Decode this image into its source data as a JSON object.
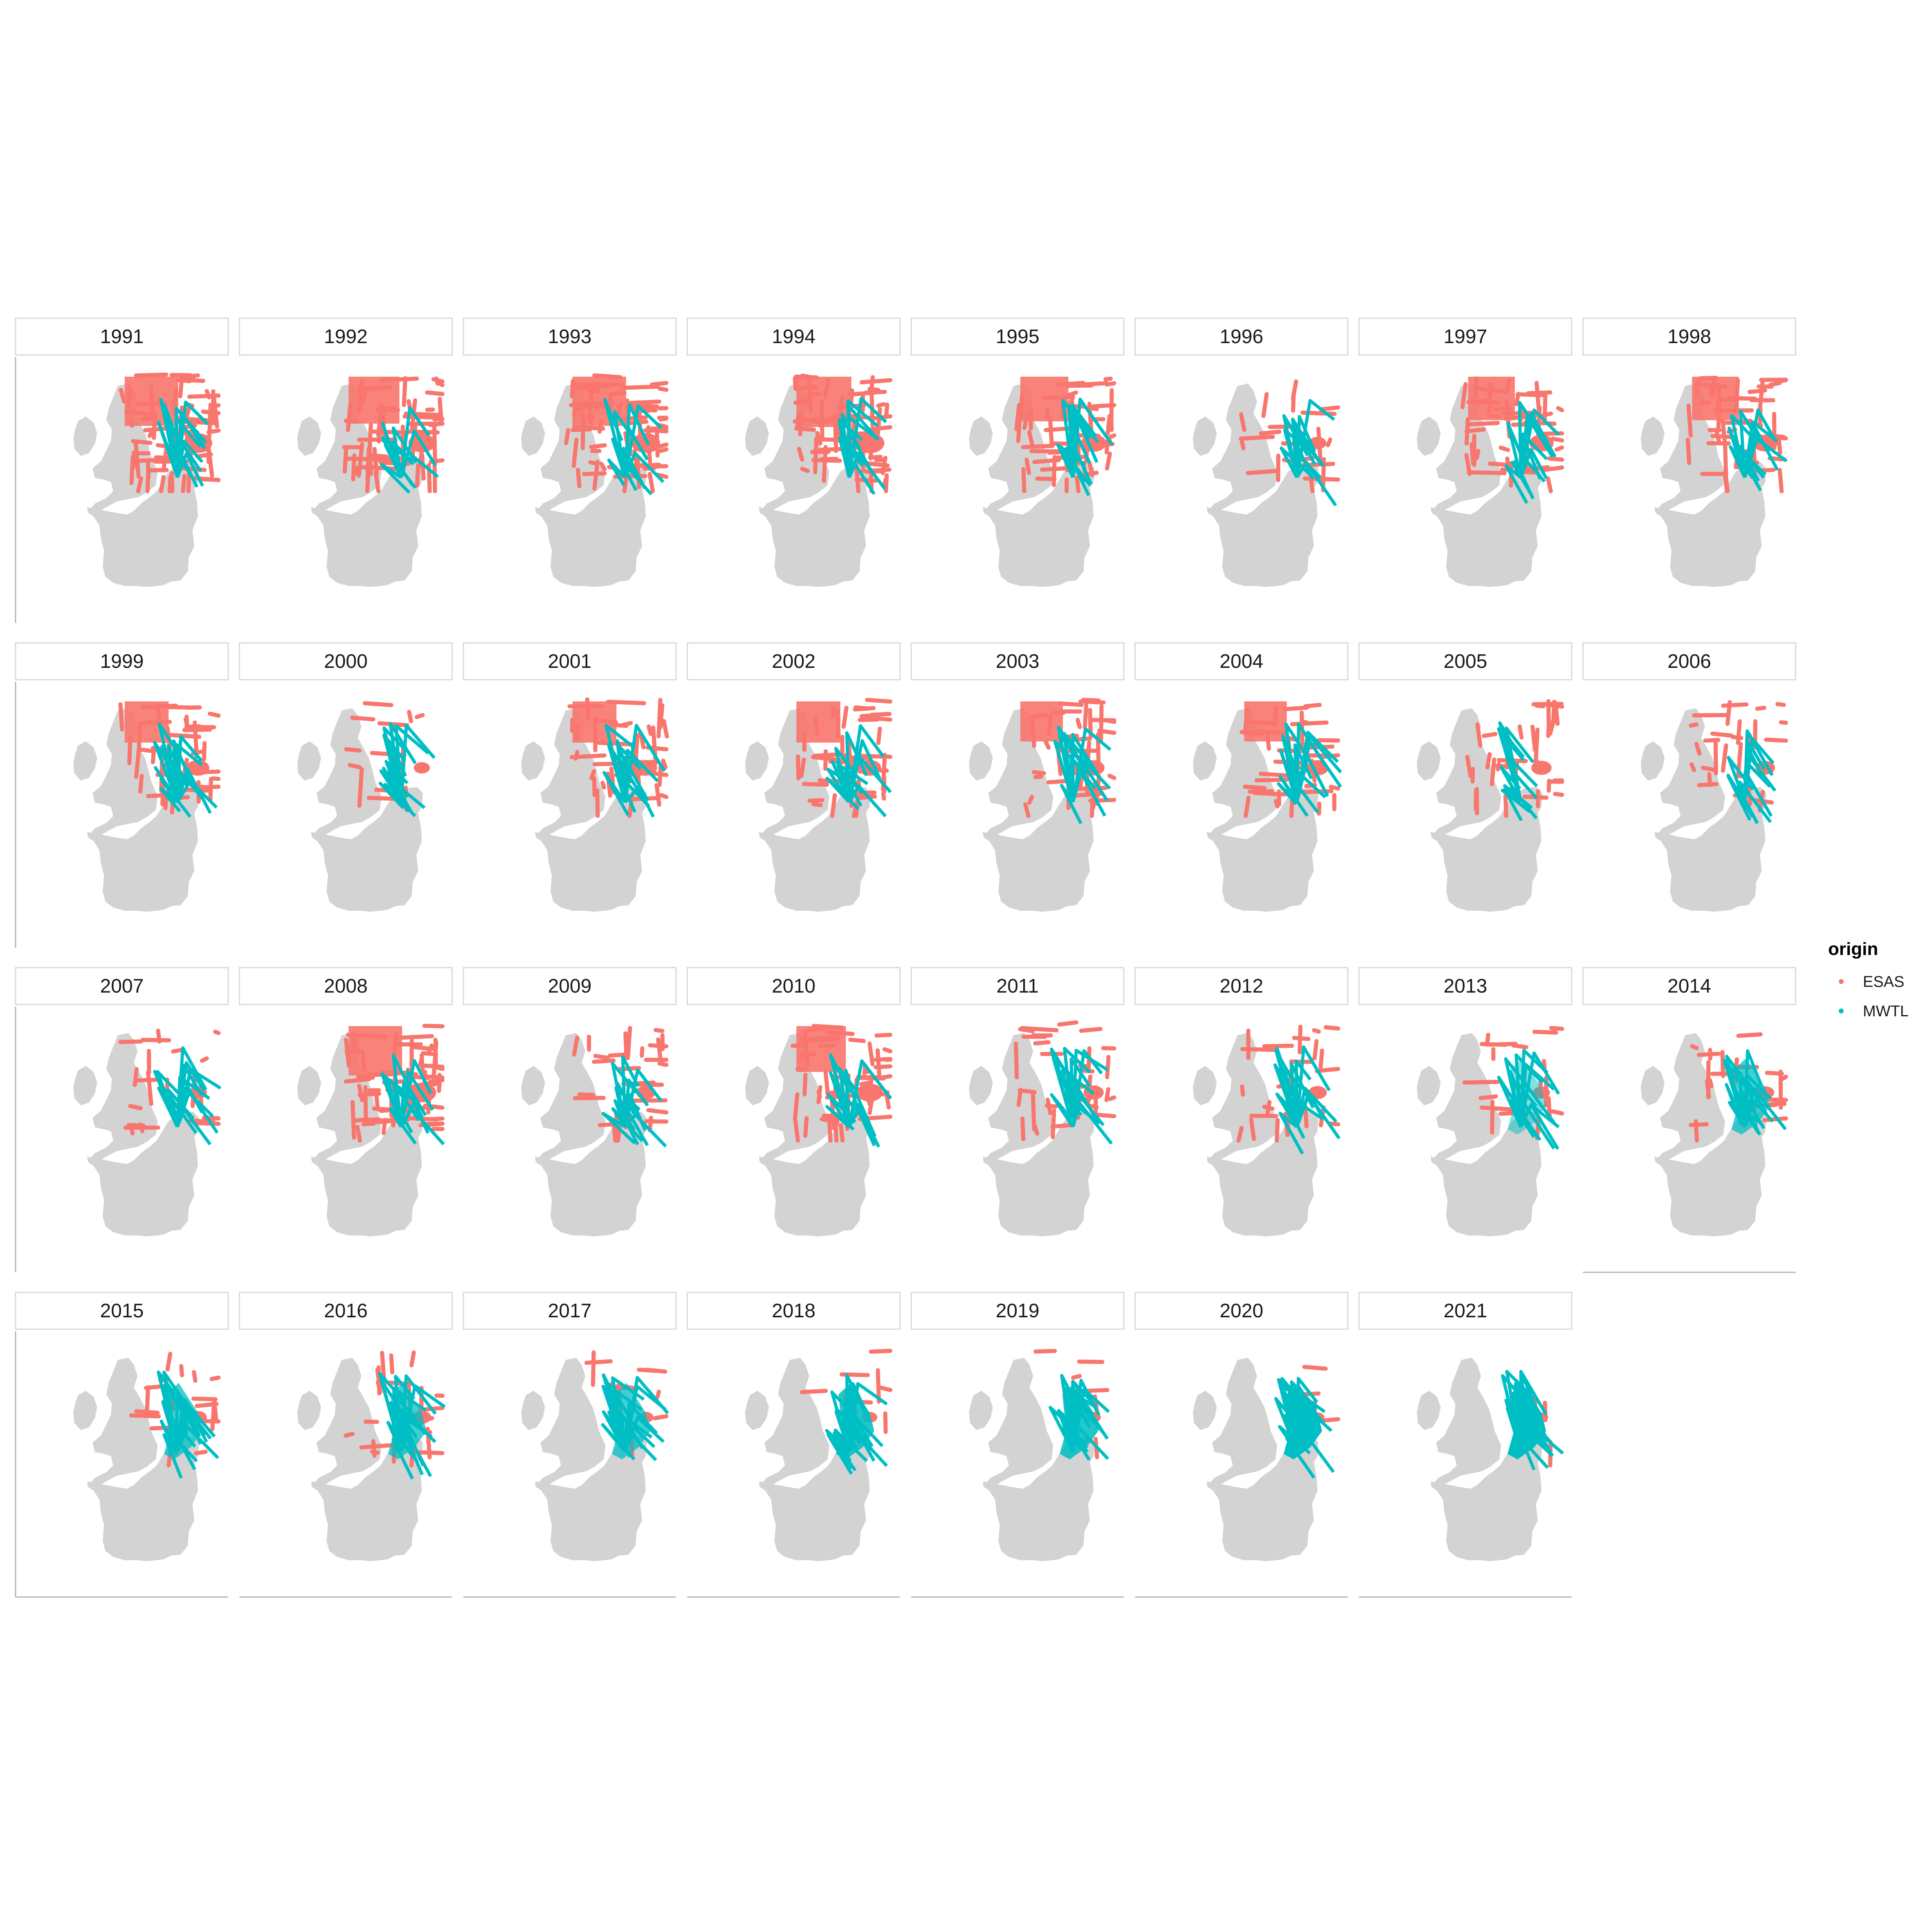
{
  "panels": [
    {
      "year": "1991",
      "esas": 0.95,
      "mwtl": 0.55
    },
    {
      "year": "1992",
      "esas": 0.85,
      "mwtl": 0.45
    },
    {
      "year": "1993",
      "esas": 0.95,
      "mwtl": 0.55
    },
    {
      "year": "1994",
      "esas": 1.0,
      "mwtl": 0.5
    },
    {
      "year": "1995",
      "esas": 0.75,
      "mwtl": 0.55
    },
    {
      "year": "1996",
      "esas": 0.3,
      "mwtl": 0.6
    },
    {
      "year": "1997",
      "esas": 0.7,
      "mwtl": 0.55
    },
    {
      "year": "1998",
      "esas": 0.7,
      "mwtl": 0.55
    },
    {
      "year": "1999",
      "esas": 0.6,
      "mwtl": 0.7
    },
    {
      "year": "2000",
      "esas": 0.2,
      "mwtl": 0.7
    },
    {
      "year": "2001",
      "esas": 0.6,
      "mwtl": 0.6
    },
    {
      "year": "2002",
      "esas": 0.6,
      "mwtl": 0.6
    },
    {
      "year": "2003",
      "esas": 0.55,
      "mwtl": 0.6
    },
    {
      "year": "2004",
      "esas": 0.55,
      "mwtl": 0.65
    },
    {
      "year": "2005",
      "esas": 0.45,
      "mwtl": 0.55
    },
    {
      "year": "2006",
      "esas": 0.4,
      "mwtl": 0.55
    },
    {
      "year": "2007",
      "esas": 0.3,
      "mwtl": 0.7
    },
    {
      "year": "2008",
      "esas": 0.95,
      "mwtl": 0.55
    },
    {
      "year": "2009",
      "esas": 0.4,
      "mwtl": 0.7
    },
    {
      "year": "2010",
      "esas": 0.8,
      "mwtl": 0.6
    },
    {
      "year": "2011",
      "esas": 0.45,
      "mwtl": 0.7
    },
    {
      "year": "2012",
      "esas": 0.35,
      "mwtl": 0.75
    },
    {
      "year": "2013",
      "esas": 0.25,
      "mwtl": 0.8
    },
    {
      "year": "2014",
      "esas": 0.3,
      "mwtl": 0.9
    },
    {
      "year": "2015",
      "esas": 0.3,
      "mwtl": 0.9
    },
    {
      "year": "2016",
      "esas": 0.35,
      "mwtl": 0.9
    },
    {
      "year": "2017",
      "esas": 0.15,
      "mwtl": 0.9
    },
    {
      "year": "2018",
      "esas": 0.15,
      "mwtl": 0.95
    },
    {
      "year": "2019",
      "esas": 0.1,
      "mwtl": 0.95
    },
    {
      "year": "2020",
      "esas": 0.05,
      "mwtl": 1.0
    },
    {
      "year": "2021",
      "esas": 0.05,
      "mwtl": 1.0
    }
  ],
  "legend": {
    "title": "origin",
    "items": [
      {
        "label": "ESAS",
        "color": "#F8766D"
      },
      {
        "label": "MWTL",
        "color": "#00BFC4"
      }
    ]
  },
  "colors": {
    "land": "#d3d3d3",
    "esas": "#F8766D",
    "mwtl": "#00BFC4",
    "strip_border": "#d9d9d9",
    "axis": "#b3b3b3"
  }
}
